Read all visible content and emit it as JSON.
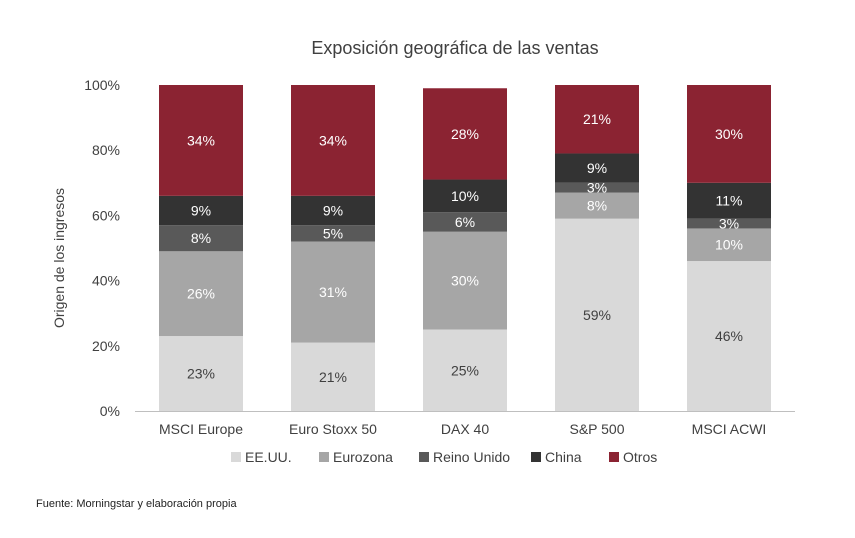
{
  "chart_data": {
    "type": "bar",
    "stacked": true,
    "title": "Exposición geográfica de las ventas",
    "xlabel": "",
    "ylabel": "Origen de los ingresos",
    "ylim": [
      0,
      100
    ],
    "yticks": [
      "0%",
      "20%",
      "40%",
      "60%",
      "80%",
      "100%"
    ],
    "categories": [
      "MSCI Europe",
      "Euro Stoxx 50",
      "DAX 40",
      "S&P 500",
      "MSCI ACWI"
    ],
    "series": [
      {
        "name": "EE.UU.",
        "color": "#d9d9d9",
        "label_color": "#404040",
        "values": [
          23,
          21,
          25,
          59,
          46
        ],
        "labels": [
          "23%",
          "21%",
          "25%",
          "59%",
          "46%"
        ]
      },
      {
        "name": "Eurozona",
        "color": "#a6a6a6",
        "label_color": "#ffffff",
        "values": [
          26,
          31,
          30,
          8,
          10
        ],
        "labels": [
          "26%",
          "31%",
          "30%",
          "8%",
          "10%"
        ]
      },
      {
        "name": "Reino Unido",
        "color": "#595959",
        "label_color": "#ffffff",
        "values": [
          8,
          5,
          6,
          3,
          3
        ],
        "labels": [
          "8%",
          "5%",
          "6%",
          "3%",
          "3%"
        ]
      },
      {
        "name": "China",
        "color": "#333333",
        "label_color": "#ffffff",
        "values": [
          9,
          9,
          10,
          9,
          11
        ],
        "labels": [
          "9%",
          "9%",
          "10%",
          "9%",
          "11%"
        ]
      },
      {
        "name": "Otros",
        "color": "#8b2332",
        "label_color": "#ffffff",
        "values": [
          34,
          34,
          28,
          21,
          30
        ],
        "labels": [
          "34%",
          "34%",
          "28%",
          "21%",
          "30%"
        ]
      }
    ],
    "legend_position": "bottom"
  },
  "footer": {
    "source": "Fuente: Morningstar y elaboración propia"
  }
}
